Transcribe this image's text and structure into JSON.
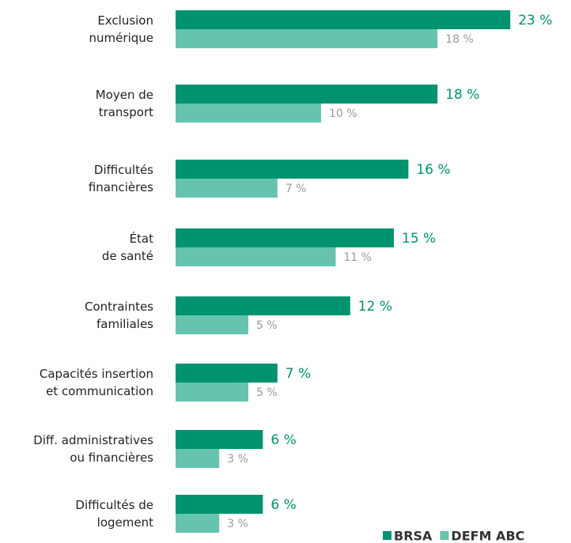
{
  "chart_data": {
    "type": "hbar-grouped",
    "categories": [
      "Exclusion\nnumérique",
      "Moyen de\ntransport",
      "Difficultés\nfinancières",
      "État\nde santé",
      "Contraintes\nfamiliales",
      "Capacités insertion\net communication",
      "Diff. administratives\nou financières",
      "Difficultés de\nlogement"
    ],
    "series": [
      {
        "name": "BRSA",
        "color": "#00936f",
        "label_color": "#00936f",
        "values": [
          23,
          18,
          16,
          15,
          12,
          7,
          6,
          6
        ],
        "value_labels": [
          "23 %",
          "18 %",
          "16 %",
          "15 %",
          "12 %",
          "7 %",
          "6 %",
          "6 %"
        ]
      },
      {
        "name": "DEFM ABC",
        "color": "#66c3ad",
        "label_color": "#9a9a9a",
        "values": [
          18,
          10,
          7,
          11,
          5,
          5,
          3,
          3
        ],
        "value_labels": [
          "18 %",
          "10 %",
          "7 %",
          "11 %",
          "5 %",
          "5 %",
          "3 %",
          "3 %"
        ]
      }
    ],
    "xlim": [
      0,
      25
    ],
    "legend": "bottom-right"
  }
}
